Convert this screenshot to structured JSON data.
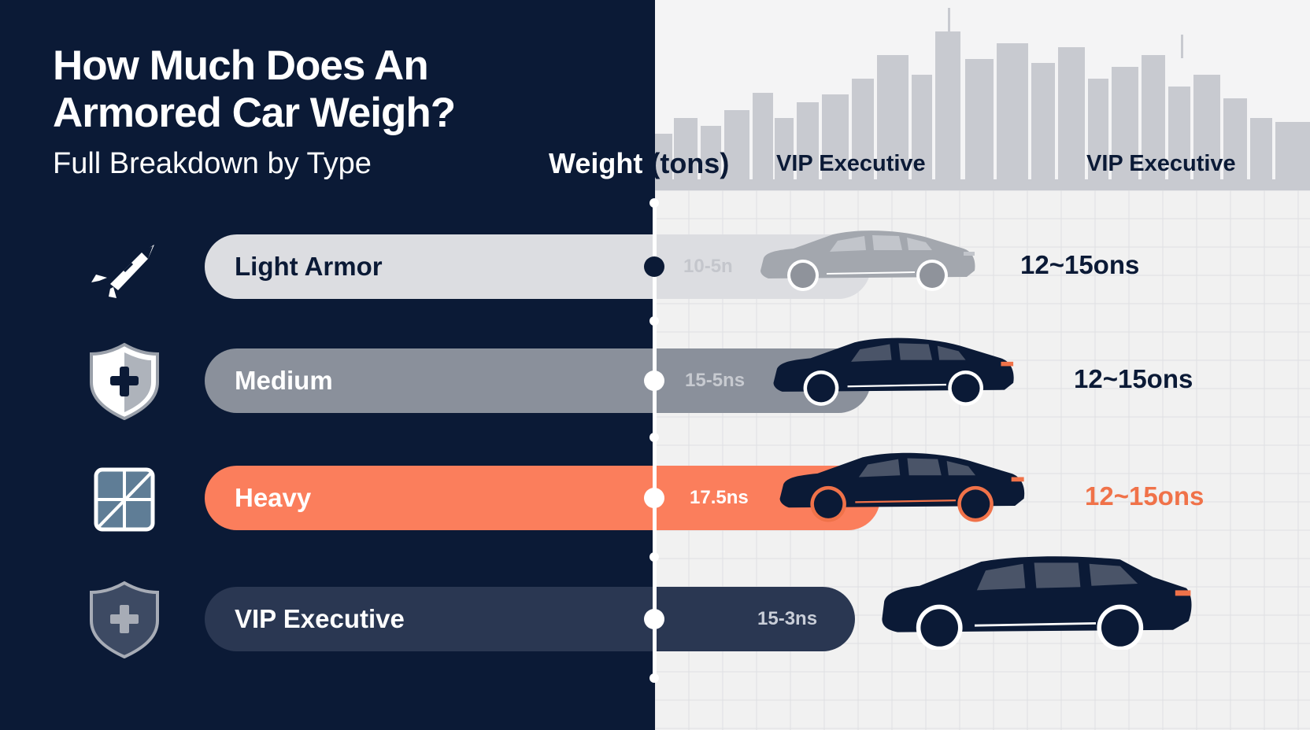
{
  "title": "How Much Does An Armored Car Weigh?",
  "subtitle": "Full Breakdown by Type",
  "axis_label_bold": "Weight",
  "axis_label_unit": "(tons)",
  "column_headers": [
    "VIP Executive",
    "VIP Executive"
  ],
  "colors": {
    "navy": "#0b1a36",
    "light_bar": "#dcdde1",
    "medium_bar": "#8a909b",
    "heavy_bar": "#fb7e5c",
    "vip_bar": "#2a3752",
    "accent": "#f07249"
  },
  "chart_data": {
    "type": "bar",
    "title": "How Much Does An Armored Car Weigh?",
    "subtitle": "Full Breakdown by Type",
    "axis_label": "Weight (tons)",
    "categories": [
      "Light Armor",
      "Medium",
      "Heavy",
      "VIP Executive"
    ],
    "bar_range_labels": [
      "10-5n",
      "15-5ns",
      "17.5ns",
      "15-3ns"
    ],
    "side_labels": [
      "12~15ons",
      "12~15ons",
      "12~15ons",
      ""
    ],
    "icons": [
      "rocket-icon",
      "shield-plus-icon",
      "window-icon",
      "shield-cross-icon"
    ],
    "car_styles": [
      "sedan-faded",
      "sedan-dark",
      "sedan-accent",
      "suv-dark"
    ]
  }
}
